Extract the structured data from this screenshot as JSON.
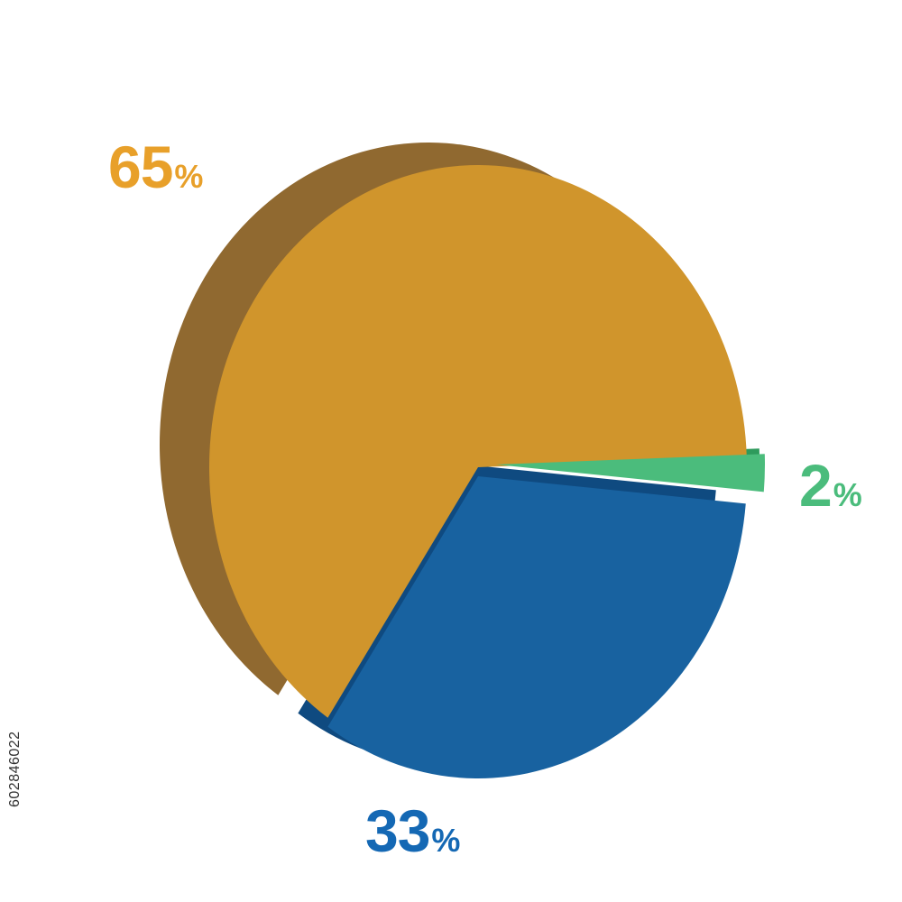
{
  "chart_data": {
    "type": "pie",
    "style": "3d",
    "slices": [
      {
        "label": "65%",
        "number": "65",
        "unit": "%",
        "value": 65,
        "color": "#D0952C",
        "side_color": "#906930"
      },
      {
        "label": "33%",
        "number": "33",
        "unit": "%",
        "value": 33,
        "color": "#1862A0",
        "side_color": "#0F4A80"
      },
      {
        "label": "2%",
        "number": "2",
        "unit": "%",
        "value": 2,
        "color": "#4BBC7C",
        "side_color": "#2E9A5C",
        "exploded": true
      }
    ],
    "label_colors": {
      "65": "#E8A02A",
      "33": "#1468B4",
      "2": "#4BBC7C"
    }
  },
  "stock_id": "602846022"
}
